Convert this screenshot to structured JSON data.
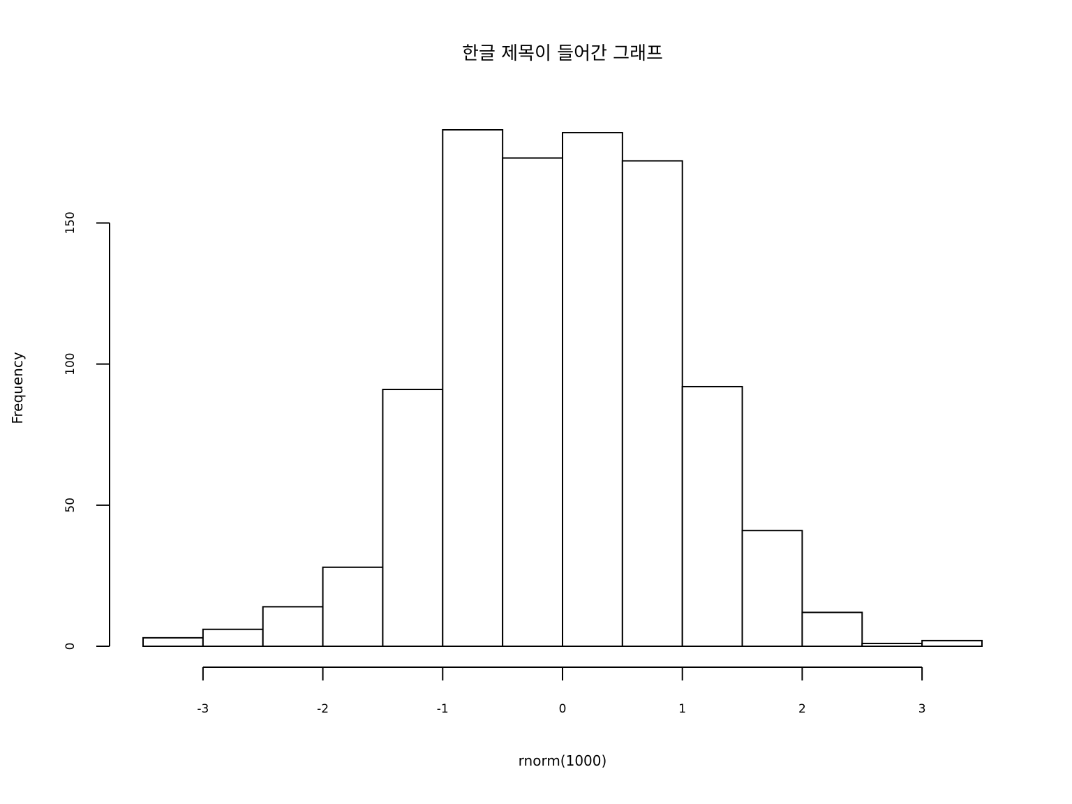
{
  "chart_data": {
    "type": "bar",
    "title": "한글 제목이 들어간 그래프",
    "xlabel": "rnorm(1000)",
    "ylabel": "Frequency",
    "bins": [
      {
        "x0": -3.5,
        "x1": -3.0,
        "count": 3
      },
      {
        "x0": -3.0,
        "x1": -2.5,
        "count": 6
      },
      {
        "x0": -2.5,
        "x1": -2.0,
        "count": 14
      },
      {
        "x0": -2.0,
        "x1": -1.5,
        "count": 28
      },
      {
        "x0": -1.5,
        "x1": -1.0,
        "count": 91
      },
      {
        "x0": -1.0,
        "x1": -0.5,
        "count": 183
      },
      {
        "x0": -0.5,
        "x1": 0.0,
        "count": 173
      },
      {
        "x0": 0.0,
        "x1": 0.5,
        "count": 182
      },
      {
        "x0": 0.5,
        "x1": 1.0,
        "count": 172
      },
      {
        "x0": 1.0,
        "x1": 1.5,
        "count": 92
      },
      {
        "x0": 1.5,
        "x1": 2.0,
        "count": 41
      },
      {
        "x0": 2.0,
        "x1": 2.5,
        "count": 12
      },
      {
        "x0": 2.5,
        "x1": 3.0,
        "count": 1
      },
      {
        "x0": 3.0,
        "x1": 3.5,
        "count": 2
      }
    ],
    "x_ticks": [
      -3,
      -2,
      -1,
      0,
      1,
      2,
      3
    ],
    "x_tick_labels": [
      "-3",
      "-2",
      "-1",
      "0",
      "1",
      "2",
      "3"
    ],
    "y_ticks": [
      0,
      50,
      100,
      150
    ],
    "y_tick_labels": [
      "0",
      "50",
      "100",
      "150"
    ],
    "xlim": [
      -3.5,
      3.5
    ],
    "ylim": [
      0,
      183
    ],
    "grid": false
  }
}
